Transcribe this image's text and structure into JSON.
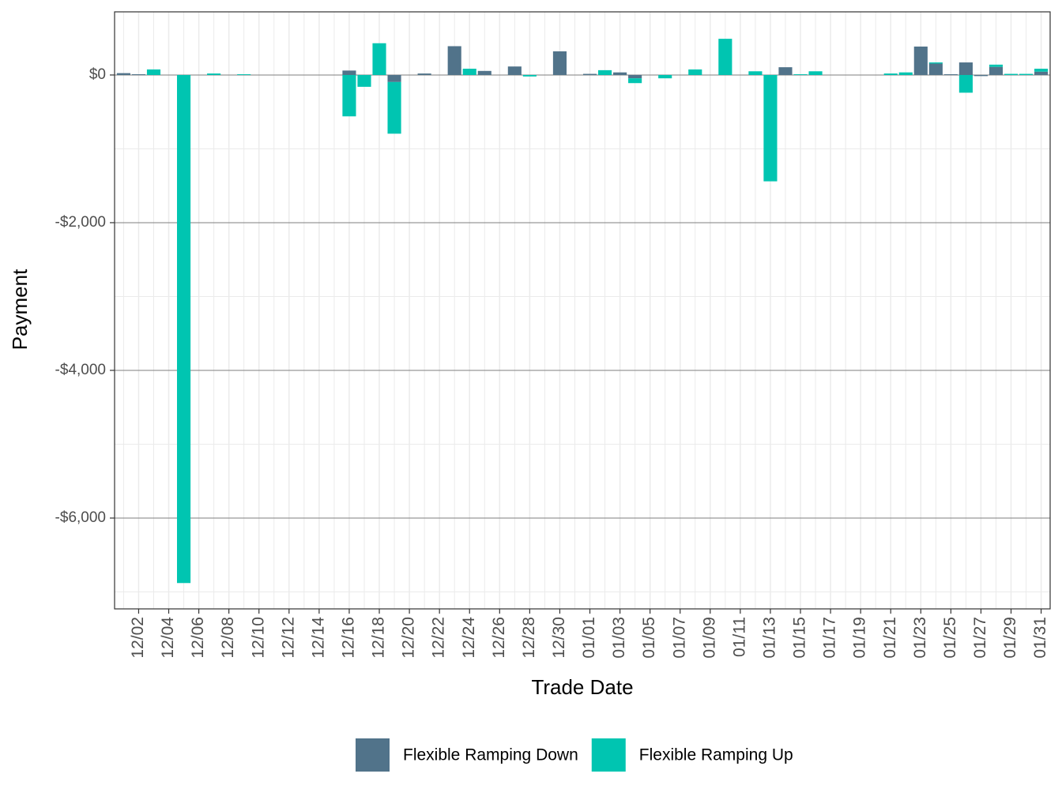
{
  "chart_data": {
    "type": "bar",
    "stacked": true,
    "x_label": "Trade Date",
    "y_label": "Payment",
    "categories": [
      null,
      "12/02",
      null,
      "12/04",
      null,
      "12/06",
      null,
      "12/08",
      null,
      "12/10",
      null,
      "12/12",
      null,
      "12/14",
      null,
      "12/16",
      null,
      "12/18",
      null,
      "12/20",
      null,
      "12/22",
      null,
      "12/24",
      null,
      "12/26",
      null,
      "12/28",
      null,
      "12/30",
      null,
      "01/01",
      null,
      "01/03",
      null,
      "01/05",
      null,
      "01/07",
      null,
      "01/09",
      null,
      "01/11",
      null,
      "01/13",
      null,
      "01/15",
      null,
      "01/17",
      null,
      "01/19",
      null,
      "01/21",
      null,
      "01/23",
      null,
      "01/25",
      null,
      "01/27",
      null,
      "01/29",
      null,
      "01/31"
    ],
    "series": [
      {
        "name": "Flexible Ramping Down",
        "color": "#51738a",
        "values": [
          25,
          10,
          0,
          0,
          0,
          0,
          0,
          0,
          0,
          0,
          0,
          0,
          0,
          0,
          0,
          60,
          0,
          0,
          -95,
          0,
          20,
          0,
          390,
          0,
          55,
          0,
          115,
          0,
          0,
          320,
          0,
          15,
          0,
          35,
          -45,
          0,
          0,
          0,
          0,
          0,
          0,
          0,
          0,
          0,
          105,
          0,
          0,
          0,
          0,
          0,
          0,
          0,
          0,
          385,
          155,
          10,
          170,
          -15,
          110,
          0,
          0,
          45
        ]
      },
      {
        "name": "Flexible Ramping Up",
        "color": "#00c5b1",
        "values": [
          0,
          0,
          75,
          0,
          -6880,
          0,
          20,
          0,
          10,
          0,
          0,
          0,
          0,
          0,
          0,
          -560,
          -160,
          430,
          -700,
          0,
          0,
          0,
          0,
          85,
          0,
          0,
          0,
          -20,
          0,
          0,
          0,
          0,
          65,
          0,
          -65,
          0,
          -45,
          0,
          75,
          0,
          490,
          0,
          50,
          -1440,
          0,
          10,
          50,
          0,
          0,
          0,
          0,
          20,
          35,
          0,
          15,
          0,
          -240,
          0,
          30,
          15,
          15,
          40
        ]
      }
    ],
    "ylim": [
      -7230,
      855
    ],
    "yticks": [
      {
        "value": -6000,
        "label": "-$6,000"
      },
      {
        "value": -4000,
        "label": "-$4,000"
      },
      {
        "value": -2000,
        "label": "-$2,000"
      },
      {
        "value": 0,
        "label": "$0"
      }
    ],
    "grid": true,
    "legend": "bottom"
  }
}
